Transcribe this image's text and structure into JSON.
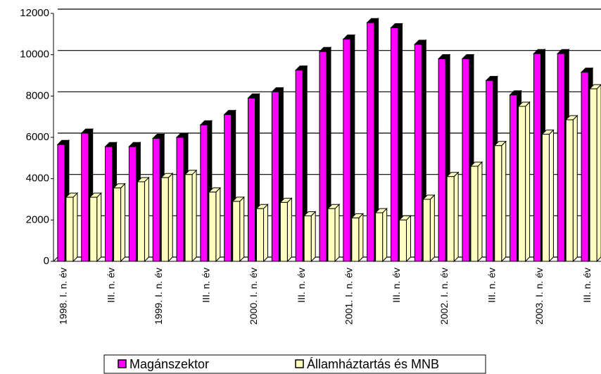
{
  "chart_data": {
    "type": "bar",
    "categories": [
      "1998. I. n. év",
      null,
      "III. n. év",
      null,
      "1999. I. n. év",
      null,
      "III. n. év",
      null,
      "2000. I. n. év",
      null,
      "III. n. év",
      null,
      "2001. I. n. év",
      null,
      "III. n. év",
      null,
      "2002. I. n. év",
      null,
      "III. n. év",
      null,
      "2003. I. n. év",
      null,
      "III. n. év"
    ],
    "series": [
      {
        "name": "Magánszektor",
        "color": "#ff00ff",
        "values": [
          5650,
          6200,
          5550,
          5550,
          5950,
          6000,
          6600,
          7100,
          7900,
          8200,
          9250,
          10150,
          10750,
          11550,
          11300,
          10500,
          9800,
          9800,
          8750,
          8050,
          10050,
          10050,
          9150
        ]
      },
      {
        "name": "Államháztartás és MNB",
        "color": "#ffffc0",
        "values": [
          3100,
          3100,
          3550,
          3850,
          4050,
          4200,
          3350,
          2900,
          2550,
          2850,
          2200,
          2550,
          2100,
          2350,
          2000,
          3000,
          4100,
          4600,
          5600,
          7500,
          6150,
          6850,
          8350
        ]
      }
    ],
    "ylim": [
      0,
      12000
    ],
    "yticks": [
      0,
      2000,
      4000,
      6000,
      8000,
      10000,
      12000
    ],
    "grid": true,
    "legend": "bottom"
  }
}
